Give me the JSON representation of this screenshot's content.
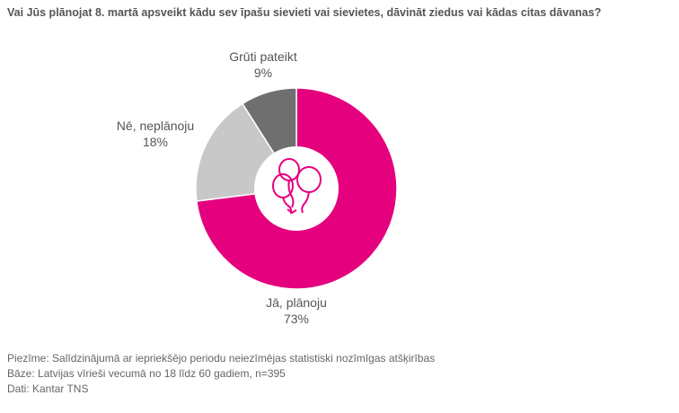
{
  "title": "Vai Jūs plānojat 8. martā apsveikt kādu sev īpašu sievieti vai sievietes, dāvināt ziedus vai kādas citas dāvanas?",
  "chart_data": {
    "type": "pie",
    "variant": "donut",
    "center_icon": "balloons-icon",
    "slices": [
      {
        "label": "Jā, plānoju",
        "value": 73,
        "value_label": "73%",
        "color": "#e5007e"
      },
      {
        "label": "Nē, neplānoju",
        "value": 18,
        "value_label": "18%",
        "color": "#c8c8c8"
      },
      {
        "label": "Grūti pateikt",
        "value": 9,
        "value_label": "9%",
        "color": "#6f6f6f"
      }
    ]
  },
  "notes": {
    "note1": "Piezīme: Salīdzinājumā ar iepriekšējo periodu neiezīmējas statistiski nozīmīgas atšķirības",
    "note2": "Bāze: Latvijas vīrieši vecumā no 18 līdz 60 gadiem, n=395",
    "note3": "Dati: Kantar TNS"
  }
}
